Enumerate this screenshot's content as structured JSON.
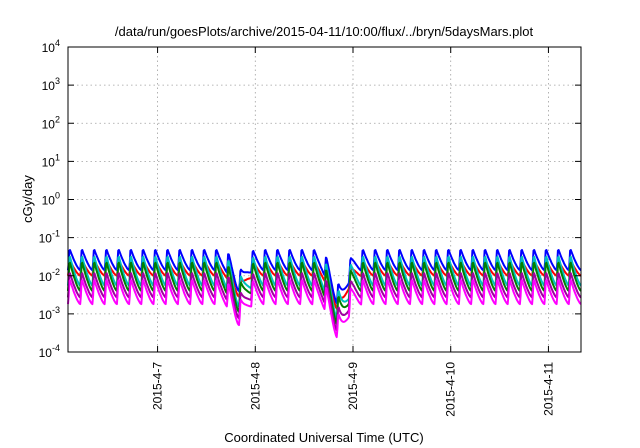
{
  "chart_data": {
    "type": "line",
    "title": "/data/run/goesPlots/archive/2015-04-11/10:00/flux/../bryn/5daysMars.plot",
    "xlabel": "Coordinated Universal Time (UTC)",
    "ylabel": "cGy/day",
    "yscale": "log",
    "ylim": [
      0.0001,
      10000
    ],
    "xlim": [
      "2015-04-06 02:00",
      "2015-04-11 08:00"
    ],
    "yticks": [
      {
        "base": "10",
        "exp": "-4"
      },
      {
        "base": "10",
        "exp": "-3"
      },
      {
        "base": "10",
        "exp": "-2"
      },
      {
        "base": "10",
        "exp": "-1"
      },
      {
        "base": "10",
        "exp": "0"
      },
      {
        "base": "10",
        "exp": "1"
      },
      {
        "base": "10",
        "exp": "2"
      },
      {
        "base": "10",
        "exp": "3"
      },
      {
        "base": "10",
        "exp": "4"
      }
    ],
    "xticks": [
      "2015-4-7",
      "2015-4-8",
      "2015-4-9",
      "2015-4-10",
      "2015-4-11"
    ],
    "grid": true,
    "sawtooth": {
      "period_hours": 3,
      "dips": [
        {
          "center": "2015-04-07 20:00",
          "width_hours": 4,
          "depth_decades": 0.55
        },
        {
          "center": "2015-04-08 20:30",
          "width_hours": 5,
          "depth_decades": 0.9
        }
      ]
    },
    "series": [
      {
        "color": "#ff0000",
        "peak": 0.027,
        "trough": 0.01
      },
      {
        "color": "#0000ff",
        "peak": 0.052,
        "trough": 0.014
      },
      {
        "color": "#00c0c0",
        "peak": 0.036,
        "trough": 0.0055
      },
      {
        "color": "#008000",
        "peak": 0.025,
        "trough": 0.004
      },
      {
        "color": "#a000a0",
        "peak": 0.013,
        "trough": 0.0027
      },
      {
        "color": "#ff00ff",
        "peak": 0.0085,
        "trough": 0.0018
      }
    ]
  }
}
